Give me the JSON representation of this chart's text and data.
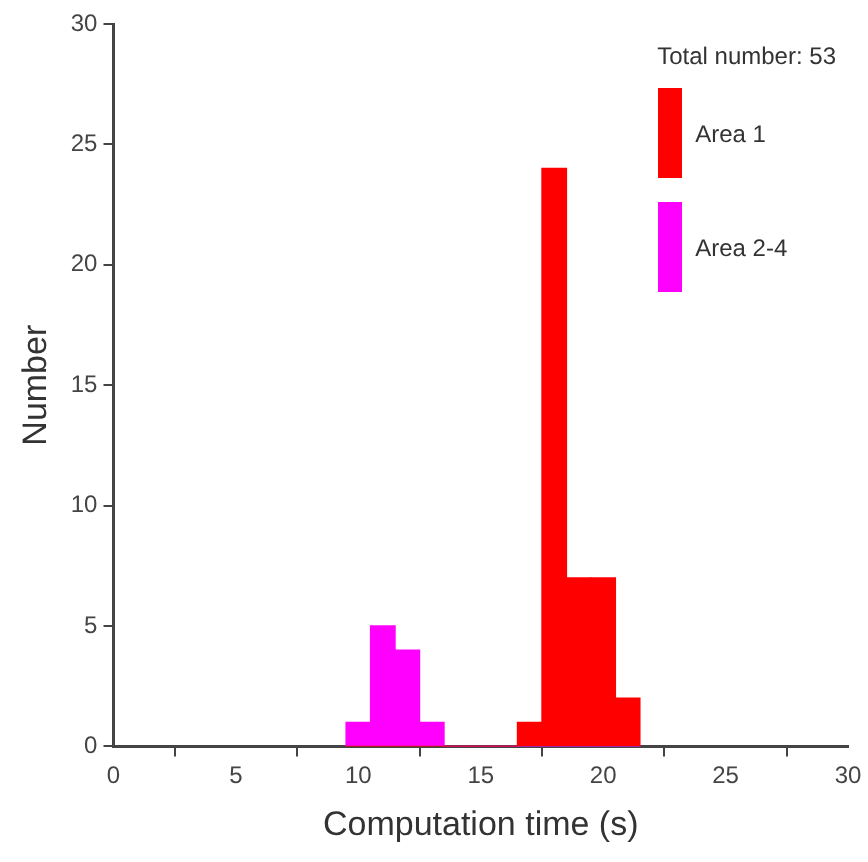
{
  "chart_data": {
    "type": "histogram",
    "xlabel": "Computation time (s)",
    "ylabel": "Number",
    "legend_title": "Total number: 53",
    "bins": [
      9.5,
      10.5,
      11.5,
      12.5,
      13.5,
      14.5,
      15.5,
      16.5,
      17.5,
      18.5,
      19.5,
      20.5,
      21.5
    ],
    "series": [
      {
        "name": "Area 1",
        "color": "#ff0000",
        "values": [
          0,
          0,
          0,
          0,
          0,
          0,
          0,
          1,
          24,
          7,
          7,
          2
        ]
      },
      {
        "name": "Area 2-4",
        "color": "#ff00ff",
        "values": [
          1,
          5,
          4,
          1,
          0,
          0,
          0,
          0,
          0,
          0,
          0,
          0
        ]
      }
    ],
    "xlim": [
      0,
      30
    ],
    "xticks": [
      0,
      5,
      10,
      15,
      20,
      25,
      30
    ],
    "ylim": [
      0,
      30
    ],
    "yticks": [
      0,
      5,
      10,
      15,
      20,
      25,
      30
    ],
    "grid": false,
    "legend": "top right"
  }
}
